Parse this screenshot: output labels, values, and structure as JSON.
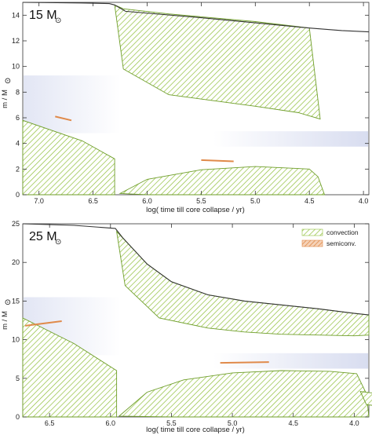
{
  "chart_data": [
    {
      "type": "area",
      "panel_label": "15 M",
      "panel_label_symbol": "⊙",
      "xlabel": "log( time till core collapse / yr)",
      "ylabel": "m / M",
      "ylabel_symbol": "⊙",
      "xlim": [
        7.15,
        3.95
      ],
      "ylim": [
        0,
        15
      ],
      "xticks": [
        "7.0",
        "6.5",
        "6.0",
        "5.5",
        "5.0",
        "4.5",
        "4.0"
      ],
      "yticks": [
        "0",
        "2",
        "4",
        "6",
        "8",
        "10",
        "12",
        "14"
      ],
      "total_mass": {
        "x": [
          7.15,
          6.6,
          6.35,
          6.3,
          6.2,
          5.5,
          5.0,
          4.5,
          4.2,
          3.95
        ],
        "y": [
          15.0,
          14.95,
          14.9,
          14.8,
          14.3,
          13.8,
          13.4,
          13.0,
          12.8,
          12.7
        ]
      },
      "regions": [
        {
          "name": "convection",
          "x": [
            7.15,
            6.6,
            6.3,
            6.3,
            6.6,
            7.15
          ],
          "y": [
            0,
            0,
            0,
            2.8,
            4.2,
            5.8
          ]
        },
        {
          "name": "convection",
          "x": [
            6.3,
            6.22,
            5.8,
            5.0,
            4.6,
            4.5,
            4.4,
            4.6,
            5.0,
            5.8,
            6.22,
            6.3
          ],
          "y": [
            14.8,
            14.5,
            14.1,
            13.5,
            13.1,
            13.0,
            5.9,
            6.4,
            6.9,
            7.8,
            9.8,
            14.8
          ]
        },
        {
          "name": "convection",
          "x": [
            6.25,
            6.0,
            5.5,
            5.0,
            4.5,
            4.42,
            4.36,
            4.5,
            5.0,
            5.5,
            6.0,
            6.25
          ],
          "y": [
            0.1,
            1.2,
            1.95,
            2.2,
            2.0,
            1.4,
            0,
            0,
            0,
            0,
            0,
            0.1
          ]
        }
      ],
      "semiconvection_regions": [
        {
          "x": [
            6.85,
            6.7
          ],
          "y": [
            6.1,
            5.8
          ]
        },
        {
          "x": [
            5.5,
            5.2
          ],
          "y": [
            2.7,
            2.6
          ]
        }
      ]
    },
    {
      "type": "area",
      "panel_label": "25 M",
      "panel_label_symbol": "⊙",
      "xlabel": "log( time till core collapse / yr)",
      "ylabel": "m / M",
      "ylabel_symbol": "⊙",
      "xlim": [
        6.72,
        3.88
      ],
      "ylim": [
        0,
        25
      ],
      "xticks": [
        "6.5",
        "6.0",
        "5.5",
        "5.0",
        "4.5",
        "4.0"
      ],
      "yticks": [
        "0",
        "5",
        "10",
        "15",
        "20",
        "25"
      ],
      "legend": {
        "position": "top-right",
        "entries": [
          "convection",
          "semiconv."
        ]
      },
      "total_mass": {
        "x": [
          6.72,
          6.3,
          5.96,
          5.9,
          5.7,
          5.5,
          5.2,
          4.9,
          4.6,
          4.3,
          4.0,
          3.88
        ],
        "y": [
          25.0,
          24.8,
          24.4,
          23.2,
          19.8,
          17.5,
          15.8,
          15.0,
          14.5,
          14.0,
          13.4,
          13.2
        ]
      },
      "regions": [
        {
          "name": "convection",
          "x": [
            6.72,
            6.3,
            5.95,
            5.95,
            6.3,
            6.72
          ],
          "y": [
            0,
            0,
            0,
            6.0,
            9.5,
            12.8
          ]
        },
        {
          "name": "convection",
          "x": [
            5.95,
            5.7,
            5.5,
            5.2,
            4.9,
            4.6,
            4.3,
            4.0,
            3.88,
            3.88,
            4.0,
            4.3,
            4.6,
            4.9,
            5.2,
            5.6,
            5.88,
            5.95
          ],
          "y": [
            24.0,
            19.8,
            17.5,
            15.8,
            15.0,
            14.5,
            14.0,
            13.4,
            13.2,
            10.6,
            10.5,
            10.6,
            10.7,
            11.0,
            11.5,
            12.8,
            17.0,
            24.0
          ]
        },
        {
          "name": "convection",
          "x": [
            5.93,
            5.7,
            5.4,
            5.0,
            4.6,
            4.2,
            3.98,
            3.9,
            3.88,
            4.0,
            4.5,
            5.0,
            5.5,
            5.93
          ],
          "y": [
            0.1,
            3.2,
            4.8,
            5.7,
            6.0,
            5.9,
            5.6,
            3.0,
            0,
            0,
            0,
            0,
            0,
            0.1
          ]
        },
        {
          "name": "convection",
          "x": [
            3.85,
            3.95,
            3.9,
            3.85
          ],
          "y": [
            3.1,
            3.3,
            1.6,
            1.5
          ]
        }
      ],
      "semiconvection_regions": [
        {
          "x": [
            6.7,
            6.4
          ],
          "y": [
            11.8,
            12.4
          ]
        },
        {
          "x": [
            5.1,
            4.7
          ],
          "y": [
            7.0,
            7.1
          ]
        }
      ]
    }
  ]
}
